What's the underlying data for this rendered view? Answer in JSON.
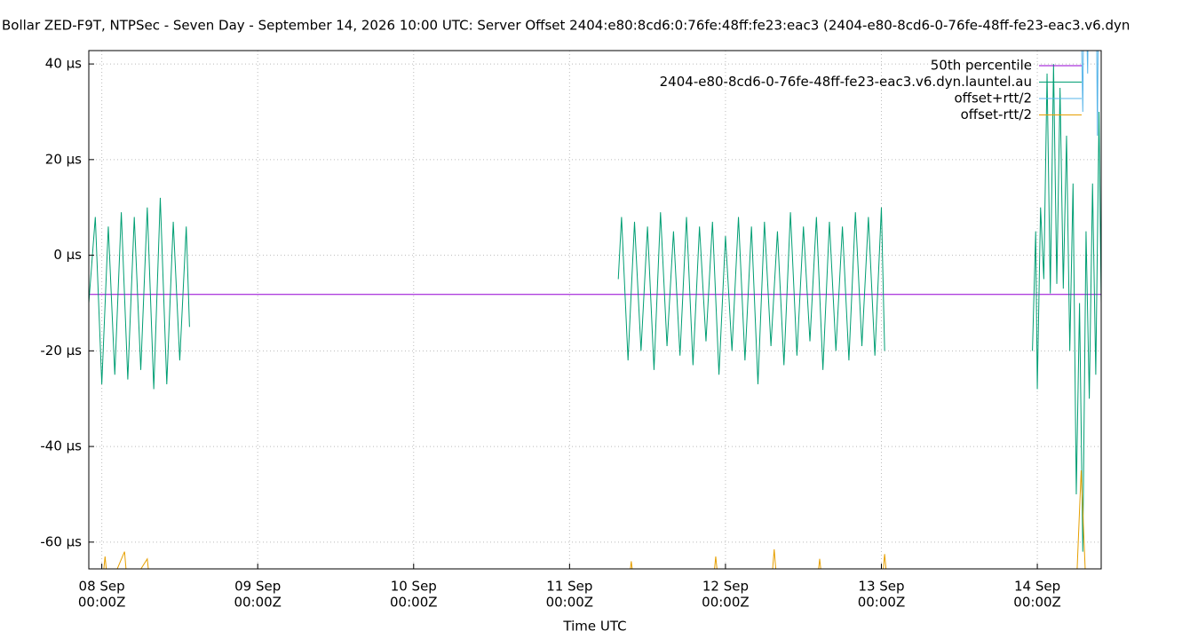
{
  "chart_data": {
    "type": "line",
    "title": "Bollar ZED-F9T, NTPSec - Seven Day - September 14, 2026 10:00 UTC: Server Offset 2404:e80:8cd6:0:76fe:48ff:fe23:eac3 (2404-e80-8cd6-0-76fe-48ff-fe23-eac3.v6.dyn",
    "xlabel": "Time UTC",
    "xlim": [
      "07 Sep 22:00Z",
      "14 Sep 09:50Z"
    ],
    "xticks": [
      {
        "value": "08 Sep 00:00Z",
        "label": [
          "08 Sep",
          "00:00Z"
        ]
      },
      {
        "value": "09 Sep 00:00Z",
        "label": [
          "09 Sep",
          "00:00Z"
        ]
      },
      {
        "value": "10 Sep 00:00Z",
        "label": [
          "10 Sep",
          "00:00Z"
        ]
      },
      {
        "value": "11 Sep 00:00Z",
        "label": [
          "11 Sep",
          "00:00Z"
        ]
      },
      {
        "value": "12 Sep 00:00Z",
        "label": [
          "12 Sep",
          "00:00Z"
        ]
      },
      {
        "value": "13 Sep 00:00Z",
        "label": [
          "13 Sep",
          "00:00Z"
        ]
      },
      {
        "value": "14 Sep 00:00Z",
        "label": [
          "14 Sep",
          "00:00Z"
        ]
      }
    ],
    "ylim": [
      -65.6,
      42.8
    ],
    "yticks": [
      {
        "value": -60,
        "label": "-60 µs"
      },
      {
        "value": -40,
        "label": "-40 µs"
      },
      {
        "value": -20,
        "label": "-20 µs"
      },
      {
        "value": 0,
        "label": "0 µs"
      },
      {
        "value": 20,
        "label": "20 µs"
      },
      {
        "value": 40,
        "label": "40 µs"
      }
    ],
    "grid": true,
    "legend": "top-right",
    "series": [
      {
        "name": "50th percentile",
        "color": "#9400d3",
        "x": [
          "07 Sep 22:00Z",
          "14 Sep 09:50Z"
        ],
        "values": [
          -8.2,
          -8.2
        ]
      },
      {
        "name": "2404-e80-8cd6-0-76fe-48ff-fe23-eac3.v6.dyn.launtel.au",
        "color": "#009e73",
        "x": [
          "07 Sep 22:00Z",
          "07 Sep 23:00Z",
          "08 Sep 00:00Z",
          "08 Sep 01:00Z",
          "08 Sep 02:00Z",
          "08 Sep 03:00Z",
          "08 Sep 04:00Z",
          "08 Sep 05:00Z",
          "08 Sep 06:00Z",
          "08 Sep 07:00Z",
          "08 Sep 08:00Z",
          "08 Sep 09:00Z",
          "08 Sep 10:00Z",
          "08 Sep 11:00Z",
          "08 Sep 12:00Z",
          "08 Sep 13:00Z",
          "08 Sep 13:30Z",
          "08 Sep 14:00Z",
          "11 Sep 07:30Z",
          "11 Sep 08:00Z",
          "11 Sep 09:00Z",
          "11 Sep 10:00Z",
          "11 Sep 11:00Z",
          "11 Sep 12:00Z",
          "11 Sep 13:00Z",
          "11 Sep 14:00Z",
          "11 Sep 15:00Z",
          "11 Sep 16:00Z",
          "11 Sep 17:00Z",
          "11 Sep 18:00Z",
          "11 Sep 19:00Z",
          "11 Sep 20:00Z",
          "11 Sep 21:00Z",
          "11 Sep 22:00Z",
          "11 Sep 23:00Z",
          "12 Sep 00:00Z",
          "12 Sep 01:00Z",
          "12 Sep 02:00Z",
          "12 Sep 03:00Z",
          "12 Sep 04:00Z",
          "12 Sep 05:00Z",
          "12 Sep 06:00Z",
          "12 Sep 07:00Z",
          "12 Sep 08:00Z",
          "12 Sep 09:00Z",
          "12 Sep 10:00Z",
          "12 Sep 11:00Z",
          "12 Sep 12:00Z",
          "12 Sep 13:00Z",
          "12 Sep 14:00Z",
          "12 Sep 15:00Z",
          "12 Sep 16:00Z",
          "12 Sep 17:00Z",
          "12 Sep 18:00Z",
          "12 Sep 19:00Z",
          "12 Sep 20:00Z",
          "12 Sep 21:00Z",
          "12 Sep 22:00Z",
          "12 Sep 23:00Z",
          "13 Sep 00:00Z",
          "13 Sep 00:30Z",
          "13 Sep 12:00Z",
          "13 Sep 23:15Z",
          "13 Sep 23:45Z",
          "14 Sep 00:00Z",
          "14 Sep 00:30Z",
          "14 Sep 01:00Z",
          "14 Sep 01:30Z",
          "14 Sep 02:00Z",
          "14 Sep 02:30Z",
          "14 Sep 03:00Z",
          "14 Sep 03:30Z",
          "14 Sep 04:00Z",
          "14 Sep 04:30Z",
          "14 Sep 05:00Z",
          "14 Sep 05:30Z",
          "14 Sep 06:00Z",
          "14 Sep 06:30Z",
          "14 Sep 07:00Z",
          "14 Sep 07:30Z",
          "14 Sep 08:00Z",
          "14 Sep 08:30Z",
          "14 Sep 09:00Z",
          "14 Sep 09:30Z",
          "14 Sep 09:50Z"
        ],
        "values": [
          -10,
          8,
          -27,
          6,
          -25,
          9,
          -26,
          8,
          -24,
          10,
          -28,
          12,
          -27,
          7,
          -22,
          6,
          -15,
          null,
          -5,
          8,
          -22,
          7,
          -20,
          6,
          -24,
          9,
          -19,
          5,
          -21,
          8,
          -23,
          6,
          -18,
          7,
          -25,
          4,
          -20,
          8,
          -22,
          6,
          -27,
          7,
          -19,
          5,
          -23,
          9,
          -21,
          6,
          -18,
          8,
          -24,
          7,
          -20,
          6,
          -22,
          9,
          -19,
          8,
          -21,
          10,
          -20,
          null,
          -20,
          5,
          -28,
          10,
          -5,
          38,
          -8,
          40,
          -6,
          35,
          -7,
          25,
          -20,
          15,
          -50,
          -10,
          -62,
          5,
          -30,
          15,
          -25,
          30,
          -10
        ]
      },
      {
        "name": "offset+rtt/2",
        "color": "#56b4e9",
        "x": [
          "14 Sep 06:30Z",
          "14 Sep 07:00Z",
          "14 Sep 07:15Z",
          "14 Sep 07:45Z",
          "14 Sep 08:00Z",
          "14 Sep 09:00Z",
          "14 Sep 09:15Z",
          "14 Sep 09:30Z"
        ],
        "values": [
          70,
          30,
          70,
          38,
          70,
          70,
          25,
          70
        ]
      },
      {
        "name": "offset-rtt/2",
        "color": "#e69f00",
        "x": [
          "08 Sep 00:00Z",
          "08 Sep 00:30Z",
          "08 Sep 01:00Z",
          "08 Sep 03:30Z",
          "08 Sep 04:00Z",
          "08 Sep 07:00Z",
          "08 Sep 07:30Z",
          "08 Sep 12:00Z",
          "11 Sep 09:00Z",
          "11 Sep 09:30Z",
          "11 Sep 10:00Z",
          "11 Sep 22:00Z",
          "11 Sep 22:30Z",
          "11 Sep 23:00Z",
          "12 Sep 07:00Z",
          "12 Sep 07:30Z",
          "12 Sep 08:00Z",
          "12 Sep 14:00Z",
          "12 Sep 14:30Z",
          "12 Sep 15:00Z",
          "13 Sep 00:00Z",
          "13 Sep 00:30Z",
          "13 Sep 01:00Z",
          "13 Sep 12:00Z",
          "14 Sep 06:00Z",
          "14 Sep 06:45Z",
          "14 Sep 07:30Z"
        ],
        "values": [
          -70,
          -63,
          -70,
          -62,
          -70,
          -63.5,
          -70,
          null,
          -70,
          -64,
          -70,
          -70,
          -63,
          -70,
          -70,
          -61.5,
          -70,
          -70,
          -63.5,
          -70,
          -70,
          -62.5,
          -70,
          null,
          -70,
          -45,
          -70
        ]
      }
    ]
  }
}
